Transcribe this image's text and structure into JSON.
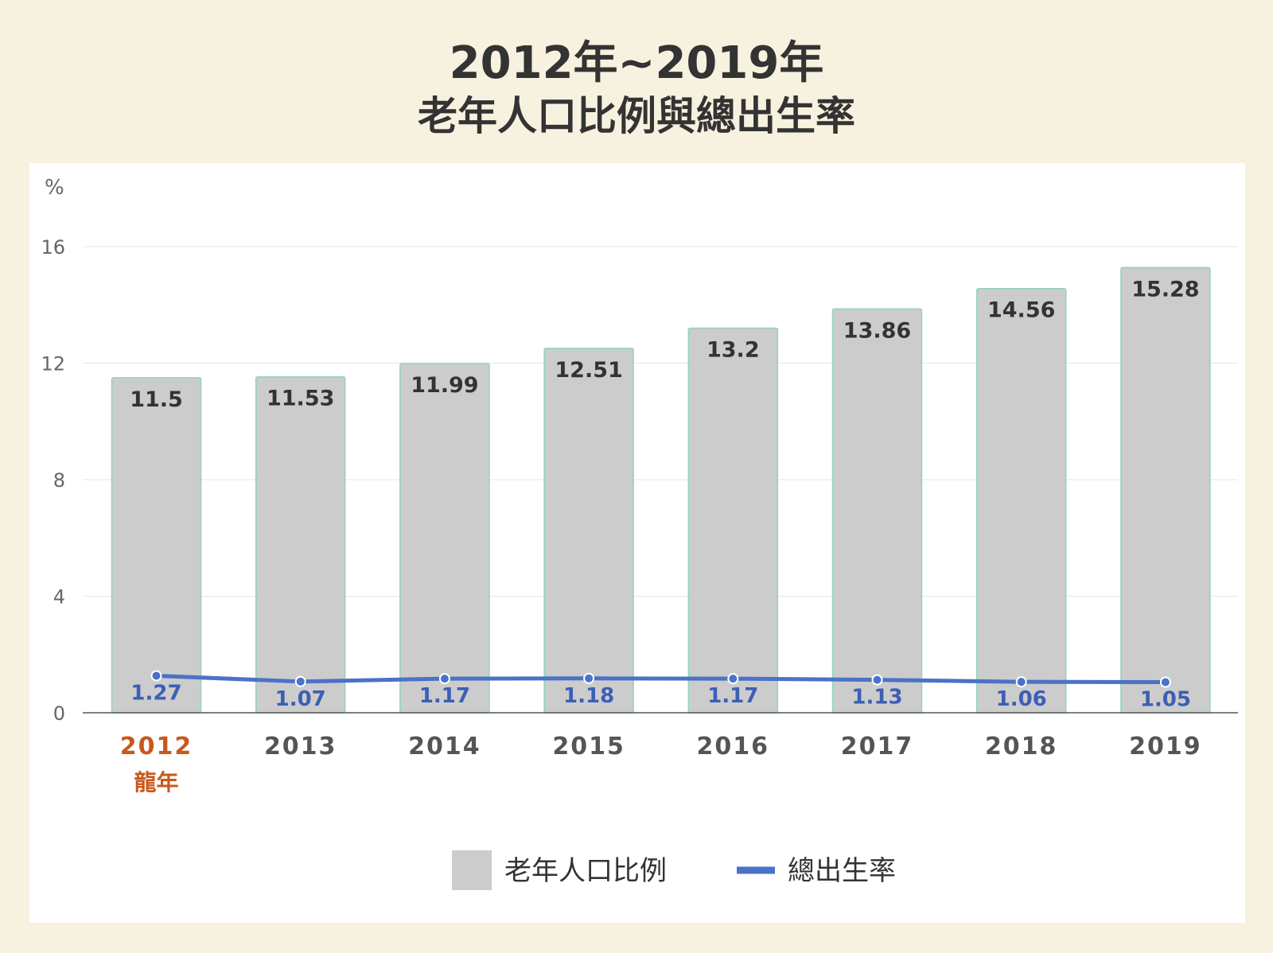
{
  "chart_data": {
    "type": "bar",
    "title": "2012年~2019年",
    "subtitle": "老年人口比例與總出生率",
    "ylabel": "%",
    "ylim": [
      0,
      16
    ],
    "yticks": [
      0,
      4,
      8,
      12,
      16
    ],
    "grid": true,
    "legend_position": "bottom",
    "categories": [
      "2012",
      "2013",
      "2014",
      "2015",
      "2016",
      "2017",
      "2018",
      "2019"
    ],
    "category_highlight": {
      "index": 0,
      "sublabel": "龍年",
      "color": "#c9581c"
    },
    "series": [
      {
        "name": "老年人口比例",
        "type": "bar",
        "values": [
          11.5,
          11.53,
          11.99,
          12.51,
          13.2,
          13.86,
          14.56,
          15.28
        ],
        "labels": [
          "11.5",
          "11.53",
          "11.99",
          "12.51",
          "13.2",
          "13.86",
          "14.56",
          "15.28"
        ],
        "color": "#cccccc",
        "edge_color": "#8fd3c6"
      },
      {
        "name": "總出生率",
        "type": "line",
        "values": [
          1.27,
          1.07,
          1.17,
          1.18,
          1.17,
          1.13,
          1.06,
          1.05
        ],
        "labels": [
          "1.27",
          "1.07",
          "1.17",
          "1.18",
          "1.17",
          "1.13",
          "1.06",
          "1.05"
        ],
        "color": "#4a72c8"
      }
    ]
  }
}
